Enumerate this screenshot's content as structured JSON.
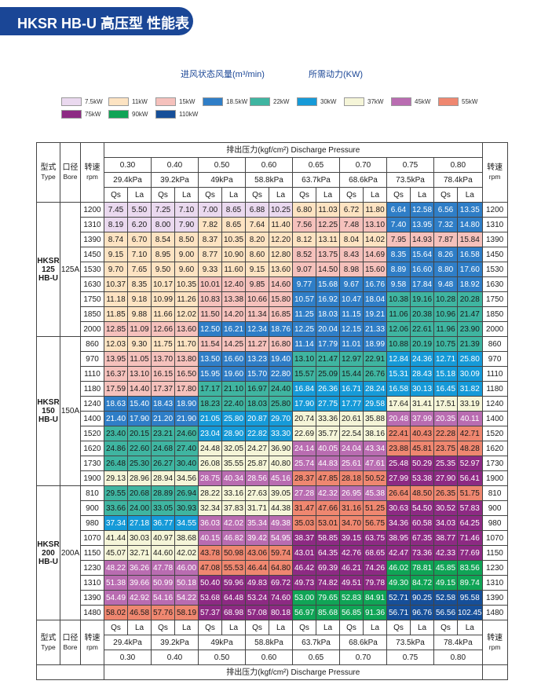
{
  "title": "HKSR HB-U 高压型 性能表",
  "subtitle_air": "进风状态风量(m³/min)",
  "subtitle_power": "所需动力(KW)",
  "legend": [
    {
      "label": "7.5kW",
      "color": "#ead9ef"
    },
    {
      "label": "11kW",
      "color": "#fde3c2"
    },
    {
      "label": "15kW",
      "color": "#f5c1bc"
    },
    {
      "label": "18.5kW",
      "color": "#2f7ec7"
    },
    {
      "label": "22kW",
      "color": "#3fb5a1"
    },
    {
      "label": "30kW",
      "color": "#169ad8"
    },
    {
      "label": "37kW",
      "color": "#f5f5d8"
    },
    {
      "label": "45kW",
      "color": "#b96cb1"
    },
    {
      "label": "55kW",
      "color": "#ef8770"
    },
    {
      "label": "75kW",
      "color": "#8d2a83"
    },
    {
      "label": "90kW",
      "color": "#10a456"
    },
    {
      "label": "110kW",
      "color": "#164f99"
    }
  ],
  "table": {
    "type_label_cn": "型式",
    "type_label_en": "Type",
    "bore_label_cn": "口径",
    "bore_label_en": "Bore",
    "speed_label_cn": "转速",
    "speed_label_en": "rpm",
    "pressure_header": "排出压力(kgf/cm²) Discharge Pressure",
    "pressures": [
      "0.30",
      "0.40",
      "0.50",
      "0.60",
      "0.65",
      "0.70",
      "0.75",
      "0.80"
    ],
    "kpa": [
      "29.4kPa",
      "39.2kPa",
      "49kPa",
      "58.8kPa",
      "63.7kPa",
      "68.6kPa",
      "73.5kPa",
      "78.4kPa"
    ],
    "qs_label": "Qs",
    "la_label": "La",
    "groups": [
      {
        "model": "HKSR\n125\nHB-U",
        "bore": "125A",
        "rows": [
          {
            "rpm": "1200",
            "vals": [
              "7.45",
              "5.50",
              "7.25",
              "7.10",
              "7.00",
              "8.65",
              "6.88",
              "10.25",
              "6.80",
              "11.03",
              "6.72",
              "11.80",
              "6.64",
              "12.58",
              "6.56",
              "13.35"
            ],
            "pw": [
              0,
              0,
              1,
              3
            ]
          },
          {
            "rpm": "1310",
            "vals": [
              "8.19",
              "6.20",
              "8.00",
              "7.90",
              "7.82",
              "8.65",
              "7.64",
              "11.40",
              "7.56",
              "12.25",
              "7.48",
              "13.10",
              "7.40",
              "13.95",
              "7.32",
              "14.80"
            ],
            "pw": [
              0,
              1,
              2,
              3
            ]
          },
          {
            "rpm": "1390",
            "vals": [
              "8.74",
              "6.70",
              "8.54",
              "8.50",
              "8.37",
              "10.35",
              "8.20",
              "12.20",
              "8.12",
              "13.11",
              "8.04",
              "14.02",
              "7.95",
              "14.93",
              "7.87",
              "15.84"
            ],
            "pw": [
              1,
              1,
              1,
              2
            ]
          },
          {
            "rpm": "1450",
            "vals": [
              "9.15",
              "7.10",
              "8.95",
              "9.00",
              "8.77",
              "10.90",
              "8.60",
              "12.80",
              "8.52",
              "13.75",
              "8.43",
              "14.69",
              "8.35",
              "15.64",
              "8.26",
              "16.58"
            ],
            "pw": [
              1,
              1,
              2,
              3
            ]
          },
          {
            "rpm": "1530",
            "vals": [
              "9.70",
              "7.65",
              "9.50",
              "9.60",
              "9.33",
              "11.60",
              "9.15",
              "13.60",
              "9.07",
              "14.50",
              "8.98",
              "15.60",
              "8.89",
              "16.60",
              "8.80",
              "17.60"
            ],
            "pw": [
              1,
              1,
              2,
              3
            ]
          },
          {
            "rpm": "1630",
            "vals": [
              "10.37",
              "8.35",
              "10.17",
              "10.35",
              "10.01",
              "12.40",
              "9.85",
              "14.60",
              "9.77",
              "15.68",
              "9.67",
              "16.76",
              "9.58",
              "17.84",
              "9.48",
              "18.92"
            ],
            "pw": [
              1,
              2,
              3,
              3
            ]
          },
          {
            "rpm": "1750",
            "vals": [
              "11.18",
              "9.18",
              "10.99",
              "11.26",
              "10.83",
              "13.38",
              "10.66",
              "15.80",
              "10.57",
              "16.92",
              "10.47",
              "18.04",
              "10.38",
              "19.16",
              "10.28",
              "20.28"
            ],
            "pw": [
              1,
              2,
              3,
              4
            ]
          },
          {
            "rpm": "1850",
            "vals": [
              "11.85",
              "9.88",
              "11.66",
              "12.02",
              "11.50",
              "14.20",
              "11.34",
              "16.85",
              "11.25",
              "18.03",
              "11.15",
              "19.21",
              "11.06",
              "20.38",
              "10.96",
              "21.47"
            ],
            "pw": [
              1,
              2,
              3,
              4
            ]
          },
          {
            "rpm": "2000",
            "vals": [
              "12.85",
              "11.09",
              "12.66",
              "13.60",
              "12.50",
              "16.21",
              "12.34",
              "18.76",
              "12.25",
              "20.04",
              "12.15",
              "21.33",
              "12.06",
              "22.61",
              "11.96",
              "23.90"
            ],
            "pw": [
              2,
              3,
              3,
              4
            ]
          }
        ]
      },
      {
        "model": "HKSR\n150\nHB-U",
        "bore": "150A",
        "rows": [
          {
            "rpm": "860",
            "vals": [
              "12.03",
              "9.30",
              "11.75",
              "11.70",
              "11.54",
              "14.25",
              "11.27",
              "16.80",
              "11.14",
              "17.79",
              "11.01",
              "18.99",
              "10.88",
              "20.19",
              "10.75",
              "21.39"
            ],
            "pw": [
              1,
              2,
              3,
              4
            ]
          },
          {
            "rpm": "970",
            "vals": [
              "13.95",
              "11.05",
              "13.70",
              "13.80",
              "13.50",
              "16.60",
              "13.23",
              "19.40",
              "13.10",
              "21.47",
              "12.97",
              "22.91",
              "12.84",
              "24.36",
              "12.71",
              "25.80"
            ],
            "pw": [
              2,
              3,
              4,
              5
            ]
          },
          {
            "rpm": "1110",
            "vals": [
              "16.37",
              "13.10",
              "16.15",
              "16.50",
              "15.95",
              "19.60",
              "15.70",
              "22.80",
              "15.57",
              "25.09",
              "15.44",
              "26.76",
              "15.31",
              "28.43",
              "15.18",
              "30.09"
            ],
            "pw": [
              2,
              3,
              4,
              5
            ]
          },
          {
            "rpm": "1180",
            "vals": [
              "17.59",
              "14.40",
              "17.37",
              "17.80",
              "17.17",
              "21.10",
              "16.97",
              "24.40",
              "16.84",
              "26.36",
              "16.71",
              "28.24",
              "16.58",
              "30.13",
              "16.45",
              "31.82"
            ],
            "pw": [
              2,
              4,
              5,
              5
            ]
          },
          {
            "rpm": "1240",
            "vals": [
              "18.63",
              "15.40",
              "18.43",
              "18.90",
              "18.23",
              "22.40",
              "18.03",
              "25.80",
              "17.90",
              "27.75",
              "17.77",
              "29.58",
              "17.64",
              "31.41",
              "17.51",
              "33.19"
            ],
            "pw": [
              3,
              4,
              5,
              6
            ]
          },
          {
            "rpm": "1400",
            "vals": [
              "21.40",
              "17.90",
              "21.20",
              "21.90",
              "21.05",
              "25.80",
              "20.87",
              "29.70",
              "20.74",
              "33.36",
              "20.61",
              "35.88",
              "20.48",
              "37.99",
              "20.35",
              "40.11"
            ],
            "pw": [
              3,
              5,
              6,
              7
            ]
          },
          {
            "rpm": "1520",
            "vals": [
              "23.40",
              "20.15",
              "23.21",
              "24.60",
              "23.04",
              "28.90",
              "22.82",
              "33.30",
              "22.69",
              "35.77",
              "22.54",
              "38.16",
              "22.41",
              "40.43",
              "22.28",
              "42.71"
            ],
            "pw": [
              4,
              5,
              6,
              8
            ]
          },
          {
            "rpm": "1620",
            "vals": [
              "24.86",
              "22.60",
              "24.68",
              "27.40",
              "24.48",
              "32.05",
              "24.27",
              "36.90",
              "24.14",
              "40.05",
              "24.04",
              "43.34",
              "23.88",
              "45.81",
              "23.75",
              "48.28"
            ],
            "pw": [
              4,
              6,
              7,
              8
            ]
          },
          {
            "rpm": "1730",
            "vals": [
              "26.48",
              "25.30",
              "26.27",
              "30.40",
              "26.08",
              "35.55",
              "25.87",
              "40.80",
              "25.74",
              "44.83",
              "25.61",
              "47.61",
              "25.48",
              "50.29",
              "25.35",
              "52.97"
            ],
            "pw": [
              4,
              6,
              7,
              9
            ]
          },
          {
            "rpm": "1900",
            "vals": [
              "29.13",
              "28.96",
              "28.94",
              "34.56",
              "28.75",
              "40.34",
              "28.56",
              "45.16",
              "28.37",
              "47.85",
              "28.18",
              "50.52",
              "27.99",
              "53.38",
              "27.90",
              "56.41"
            ],
            "pw": [
              6,
              7,
              8,
              9
            ]
          }
        ]
      },
      {
        "model": "HKSR\n200\nHB-U",
        "bore": "200A",
        "rows": [
          {
            "rpm": "810",
            "vals": [
              "29.55",
              "20.68",
              "28.89",
              "26.94",
              "28.22",
              "33.16",
              "27.63",
              "39.05",
              "27.28",
              "42.32",
              "26.95",
              "45.38",
              "26.64",
              "48.50",
              "26.35",
              "51.75"
            ],
            "pw": [
              4,
              6,
              7,
              8
            ]
          },
          {
            "rpm": "900",
            "vals": [
              "33.66",
              "24.00",
              "33.05",
              "30.93",
              "32.34",
              "37.83",
              "31.71",
              "44.38",
              "31.47",
              "47.66",
              "31.16",
              "51.25",
              "30.63",
              "54.50",
              "30.52",
              "57.83"
            ],
            "pw": [
              4,
              6,
              8,
              9
            ]
          },
          {
            "rpm": "980",
            "vals": [
              "37.34",
              "27.18",
              "36.77",
              "34.55",
              "36.03",
              "42.02",
              "35.34",
              "49.38",
              "35.03",
              "53.01",
              "34.70",
              "56.75",
              "34.36",
              "60.58",
              "34.03",
              "64.25"
            ],
            "pw": [
              5,
              7,
              8,
              9
            ]
          },
          {
            "rpm": "1070",
            "vals": [
              "41.44",
              "30.03",
              "40.97",
              "38.68",
              "40.15",
              "46.82",
              "39.42",
              "54.95",
              "38.37",
              "58.85",
              "39.15",
              "63.75",
              "38.95",
              "67.35",
              "38.77",
              "71.46"
            ],
            "pw": [
              6,
              7,
              9,
              9
            ]
          },
          {
            "rpm": "1150",
            "vals": [
              "45.07",
              "32.71",
              "44.60",
              "42.02",
              "43.78",
              "50.98",
              "43.06",
              "59.74",
              "43.01",
              "64.35",
              "42.76",
              "68.65",
              "42.47",
              "73.36",
              "42.33",
              "77.69"
            ],
            "pw": [
              6,
              8,
              9,
              9
            ]
          },
          {
            "rpm": "1230",
            "vals": [
              "48.22",
              "36.26",
              "47.78",
              "46.00",
              "47.08",
              "55.53",
              "46.44",
              "64.80",
              "46.42",
              "69.39",
              "46.21",
              "74.26",
              "46.02",
              "78.81",
              "45.85",
              "83.56"
            ],
            "pw": [
              7,
              8,
              9,
              10
            ]
          },
          {
            "rpm": "1310",
            "vals": [
              "51.38",
              "39.66",
              "50.99",
              "50.18",
              "50.40",
              "59.96",
              "49.83",
              "69.72",
              "49.73",
              "74.82",
              "49.51",
              "79.78",
              "49.30",
              "84.72",
              "49.15",
              "89.74"
            ],
            "pw": [
              7,
              9,
              9,
              10
            ]
          },
          {
            "rpm": "1390",
            "vals": [
              "54.49",
              "42.92",
              "54.16",
              "54.22",
              "53.68",
              "64.48",
              "53.24",
              "74.60",
              "53.00",
              "79.65",
              "52.83",
              "84.91",
              "52.71",
              "90.25",
              "52.58",
              "95.58"
            ],
            "pw": [
              7,
              9,
              10,
              11
            ]
          },
          {
            "rpm": "1480",
            "vals": [
              "58.02",
              "46.58",
              "57.76",
              "58.19",
              "57.37",
              "68.98",
              "57.08",
              "80.18",
              "56.97",
              "85.68",
              "56.85",
              "91.36",
              "56.71",
              "96.76",
              "56.56",
              "102.45"
            ],
            "pw": [
              8,
              9,
              10,
              11
            ]
          }
        ]
      }
    ]
  }
}
